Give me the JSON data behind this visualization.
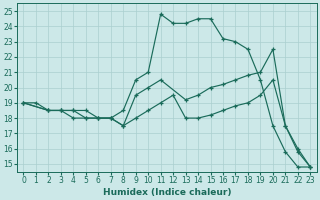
{
  "xlabel": "Humidex (Indice chaleur)",
  "bg_color": "#cce8e8",
  "line_color": "#1a6b5a",
  "grid_color": "#aacfcf",
  "xlim": [
    -0.5,
    23.5
  ],
  "ylim": [
    14.5,
    25.5
  ],
  "xticks": [
    0,
    1,
    2,
    3,
    4,
    5,
    6,
    7,
    8,
    9,
    10,
    11,
    12,
    13,
    14,
    15,
    16,
    17,
    18,
    19,
    20,
    21,
    22,
    23
  ],
  "yticks": [
    15,
    16,
    17,
    18,
    19,
    20,
    21,
    22,
    23,
    24,
    25
  ],
  "series_a_x": [
    0,
    1,
    2,
    3,
    4,
    5,
    6,
    7,
    8,
    9,
    10,
    11,
    12,
    13,
    14,
    15,
    16,
    17,
    18,
    19,
    20,
    21,
    22,
    23
  ],
  "series_a_y": [
    19,
    19,
    18.5,
    18.5,
    18.5,
    18.5,
    18,
    18,
    18.5,
    20.5,
    21,
    24.8,
    24.2,
    24.2,
    24.5,
    24.5,
    23.2,
    23.0,
    22.5,
    20.5,
    17.5,
    15.8,
    14.8,
    14.8
  ],
  "series_b_x": [
    0,
    2,
    3,
    4,
    5,
    6,
    7,
    8,
    9,
    10,
    11,
    13,
    14,
    15,
    16,
    17,
    18,
    19,
    20,
    21,
    22,
    23
  ],
  "series_b_y": [
    19,
    18.5,
    18.5,
    18.5,
    18,
    18,
    18,
    17.5,
    19.5,
    20,
    20.5,
    19.2,
    19.5,
    20,
    20.2,
    20.5,
    20.8,
    21,
    22.5,
    17.5,
    15.8,
    14.8
  ],
  "series_c_x": [
    0,
    2,
    3,
    4,
    5,
    6,
    7,
    8,
    9,
    10,
    11,
    12,
    13,
    14,
    15,
    16,
    17,
    18,
    19,
    20,
    21,
    22,
    23
  ],
  "series_c_y": [
    19,
    18.5,
    18.5,
    18,
    18,
    18,
    18,
    17.5,
    18,
    18.5,
    19,
    19.5,
    18,
    18,
    18.2,
    18.5,
    18.8,
    19,
    19.5,
    20.5,
    17.5,
    16,
    14.8
  ]
}
